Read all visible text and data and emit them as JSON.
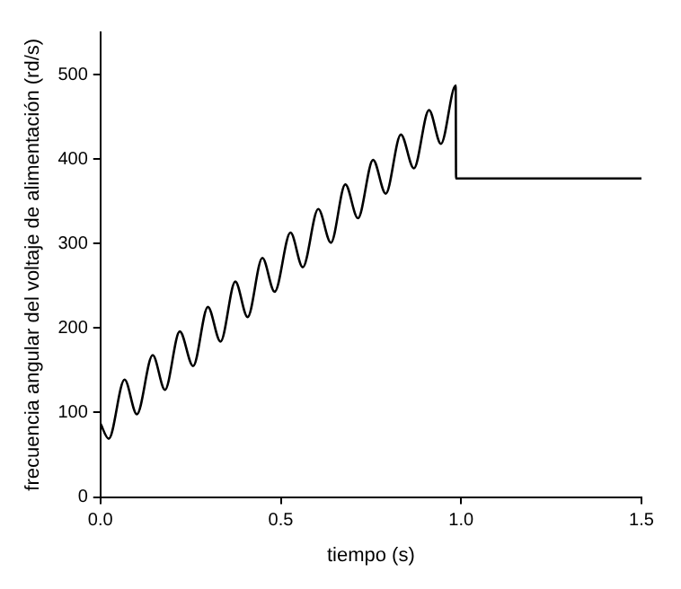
{
  "chart_data": {
    "type": "line",
    "xlabel": "tiempo (s)",
    "ylabel": "frecuencia angular del voltaje de alimentación (rd/s)",
    "series": [
      {
        "color": "#000000",
        "x": [
          0,
          0.023,
          0.067,
          0.101,
          0.145,
          0.179,
          0.22,
          0.257,
          0.298,
          0.333,
          0.374,
          0.408,
          0.449,
          0.483,
          0.527,
          0.561,
          0.604,
          0.639,
          0.679,
          0.714,
          0.756,
          0.791,
          0.833,
          0.869,
          0.911,
          0.944,
          0.985,
          0.986,
          1.5
        ],
        "values": [
          87,
          69,
          139,
          98,
          168,
          127,
          196,
          155,
          225,
          184,
          255,
          213,
          283,
          243,
          313,
          272,
          341,
          301,
          370,
          330,
          399,
          359,
          429,
          389,
          458,
          418,
          487,
          377,
          377
        ]
      }
    ],
    "xlim": [
      0,
      1.5
    ],
    "xticks": [
      {
        "value": 0,
        "label": "0.0"
      },
      {
        "value": 0.5,
        "label": "0.5"
      },
      {
        "value": 1,
        "label": "1.0"
      },
      {
        "value": 1.5,
        "label": "1.5"
      }
    ],
    "ylim": [
      0,
      550
    ],
    "yticks": [
      0,
      100,
      200,
      300,
      400,
      500
    ],
    "grid": false,
    "legend": false,
    "marker": "none",
    "line_style": "solid"
  }
}
